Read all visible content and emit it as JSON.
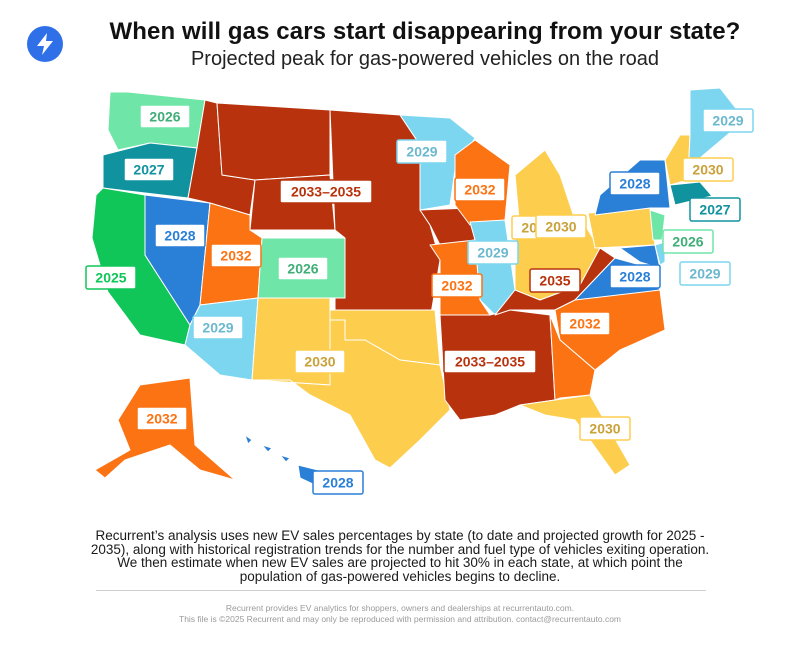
{
  "header": {
    "title": "When will gas cars start disappearing from your state?",
    "subtitle": "Projected peak for gas-powered vehicles on the road",
    "logo_icon": "lightning-bolt-icon"
  },
  "colors": {
    "2025": "#10c659",
    "2026": "#6fe6a8",
    "2027": "#11939f",
    "2028": "#2a7fd6",
    "2029": "#7dd6f0",
    "2030": "#fdcd4e",
    "2032": "#fb7313",
    "2033-2035": "#b8330d",
    "2035": "#b8330d"
  },
  "labels": [
    {
      "id": "wa",
      "text": "2026",
      "cat": "2026"
    },
    {
      "id": "or",
      "text": "2027",
      "cat": "2027"
    },
    {
      "id": "ca",
      "text": "2025",
      "cat": "2025"
    },
    {
      "id": "nv",
      "text": "2028",
      "cat": "2028"
    },
    {
      "id": "ut",
      "text": "2032",
      "cat": "2032"
    },
    {
      "id": "co",
      "text": "2026",
      "cat": "2026"
    },
    {
      "id": "az",
      "text": "2029",
      "cat": "2029"
    },
    {
      "id": "nm",
      "text": "2030",
      "cat": "2030"
    },
    {
      "id": "plains",
      "text": "2033–2035",
      "cat": "2033-2035"
    },
    {
      "id": "mn",
      "text": "2029",
      "cat": "2029"
    },
    {
      "id": "wi",
      "text": "2032",
      "cat": "2032"
    },
    {
      "id": "il",
      "text": "2029",
      "cat": "2029"
    },
    {
      "id": "mo",
      "text": "2032",
      "cat": "2032"
    },
    {
      "id": "mi",
      "text": "2030",
      "cat": "2030"
    },
    {
      "id": "oh",
      "text": "2030",
      "cat": "2030"
    },
    {
      "id": "ky",
      "text": "2035",
      "cat": "2035"
    },
    {
      "id": "south",
      "text": "2033–2035",
      "cat": "2033-2035"
    },
    {
      "id": "nc",
      "text": "2032",
      "cat": "2032"
    },
    {
      "id": "fl",
      "text": "2030",
      "cat": "2030"
    },
    {
      "id": "ak",
      "text": "2032",
      "cat": "2032"
    },
    {
      "id": "hi",
      "text": "2028",
      "cat": "2028"
    },
    {
      "id": "me",
      "text": "2029",
      "cat": "2029"
    },
    {
      "id": "vt",
      "text": "2030",
      "cat": "2030"
    },
    {
      "id": "ny",
      "text": "2028",
      "cat": "2028"
    },
    {
      "id": "ma",
      "text": "2027",
      "cat": "2027"
    },
    {
      "id": "nj",
      "text": "2026",
      "cat": "2026"
    },
    {
      "id": "md",
      "text": "2028",
      "cat": "2028"
    },
    {
      "id": "de",
      "text": "2029",
      "cat": "2029"
    }
  ],
  "description": "Recurrent’s analysis uses new EV sales percentages by state (to date and projected growth for 2025 - 2035), along with historical registration trends for the number and fuel type of vehicles exiting operation. We then estimate when new EV sales are projected to hit 30% in each state, at which point the population of gas-powered vehicles begins to decline.",
  "footer": {
    "line1": "Recurrent provides EV analytics for shoppers, owners and dealerships at recurrentauto.com.",
    "line2": "This file is ©2025 Recurrent and may only be reproduced with permission and attribution. contact@recurrentauto.com"
  }
}
